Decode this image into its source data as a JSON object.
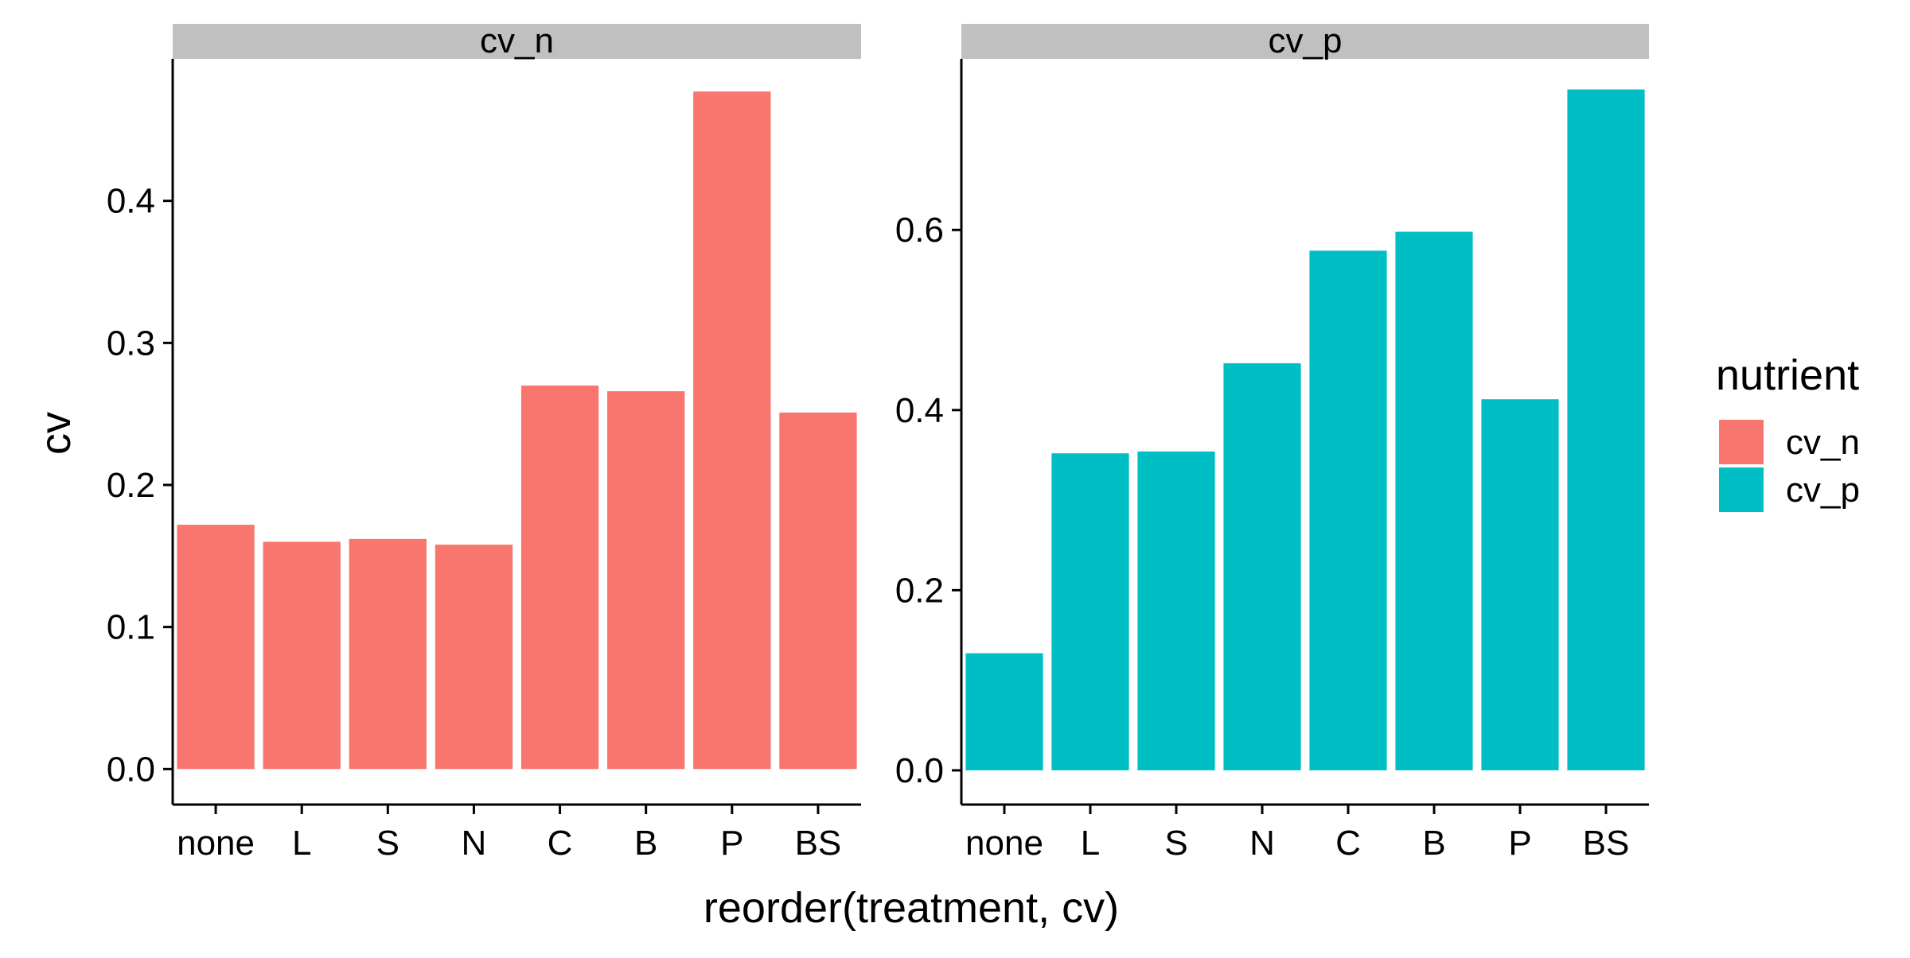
{
  "chart_data": {
    "type": "bar",
    "xlabel": "reorder(treatment, cv)",
    "ylabel": "cv",
    "legend": {
      "title": "nutrient",
      "placement": "right",
      "entries": [
        {
          "label": "cv_n",
          "color": "#F8766D"
        },
        {
          "label": "cv_p",
          "color": "#00BFC4"
        }
      ]
    },
    "grid": false,
    "panels": [
      {
        "strip": "cv_n",
        "color": "#F8766D",
        "categories": [
          "none",
          "L",
          "S",
          "N",
          "C",
          "B",
          "P",
          "BS"
        ],
        "values": [
          0.172,
          0.16,
          0.162,
          0.158,
          0.27,
          0.266,
          0.477,
          0.251
        ],
        "ylim": [
          -0.025,
          0.5
        ],
        "yticks": [
          0.0,
          0.1,
          0.2,
          0.3,
          0.4
        ],
        "ytick_labels": [
          "0.0",
          "0.1",
          "0.2",
          "0.3",
          "0.4"
        ]
      },
      {
        "strip": "cv_p",
        "color": "#00BFC4",
        "categories": [
          "none",
          "L",
          "S",
          "N",
          "C",
          "B",
          "P",
          "BS"
        ],
        "values": [
          0.13,
          0.352,
          0.354,
          0.452,
          0.577,
          0.598,
          0.412,
          0.756
        ],
        "ylim": [
          -0.038,
          0.79
        ],
        "yticks": [
          0.0,
          0.2,
          0.4,
          0.6
        ],
        "ytick_labels": [
          "0.0",
          "0.2",
          "0.4",
          "0.6"
        ]
      }
    ]
  }
}
